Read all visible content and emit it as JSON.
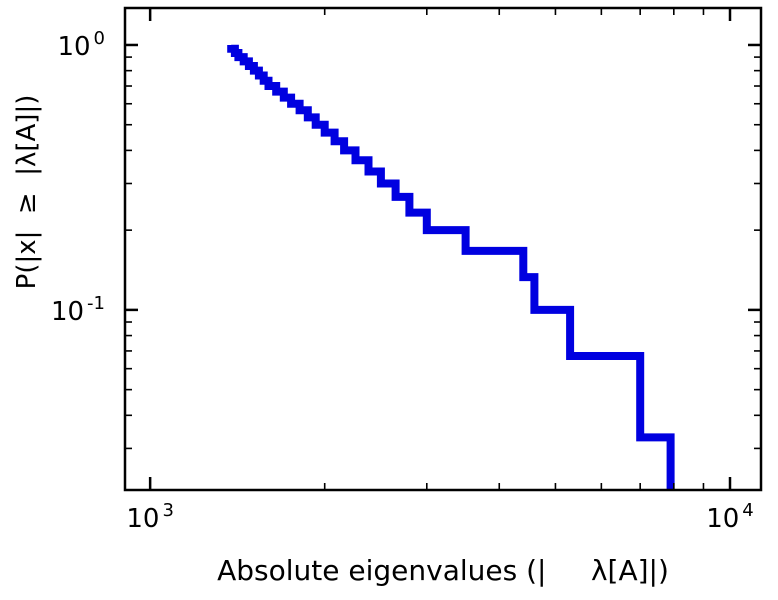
{
  "figure": {
    "background": "#ffffff",
    "axis_color": "#000000"
  },
  "chart_data": {
    "type": "line",
    "subtype": "step-ccdf",
    "title": "",
    "xlabel": "Absolute eigenvalues (|     λ[A]|)",
    "ylabel": "P(|x|  ≥  |λ[A]|)",
    "x_scale": "log",
    "y_scale": "log",
    "xlim": [
      905,
      11310
    ],
    "ylim": [
      0.0209,
      1.379
    ],
    "x_major_ticks": [
      1000,
      10000
    ],
    "x_tick_labels": [
      {
        "base": "10",
        "exp": "3"
      },
      {
        "base": "10",
        "exp": "4"
      }
    ],
    "y_major_ticks": [
      1,
      0.1
    ],
    "y_tick_labels": [
      {
        "base": "10",
        "exp": "0"
      },
      {
        "base": "10",
        "exp": "-1"
      }
    ],
    "grid": false,
    "frame": true,
    "legend": null,
    "line_color": "#0000e0",
    "line_width": 8,
    "n_samples": 30,
    "series": [
      {
        "name": "eigenvalue-ccdf",
        "eigenvalues_sorted": [
          1380,
          1400,
          1420,
          1450,
          1480,
          1510,
          1540,
          1570,
          1600,
          1650,
          1700,
          1750,
          1810,
          1870,
          1930,
          2000,
          2080,
          2160,
          2260,
          2380,
          2500,
          2650,
          2800,
          3000,
          3500,
          4400,
          4600,
          5300,
          7000,
          7900
        ],
        "ccdf_after_each": [
          0.967,
          0.933,
          0.9,
          0.867,
          0.833,
          0.8,
          0.767,
          0.733,
          0.7,
          0.667,
          0.633,
          0.6,
          0.567,
          0.533,
          0.5,
          0.467,
          0.433,
          0.4,
          0.367,
          0.333,
          0.3,
          0.267,
          0.233,
          0.2,
          0.167,
          0.133,
          0.1,
          0.067,
          0.033,
          0
        ]
      }
    ]
  }
}
